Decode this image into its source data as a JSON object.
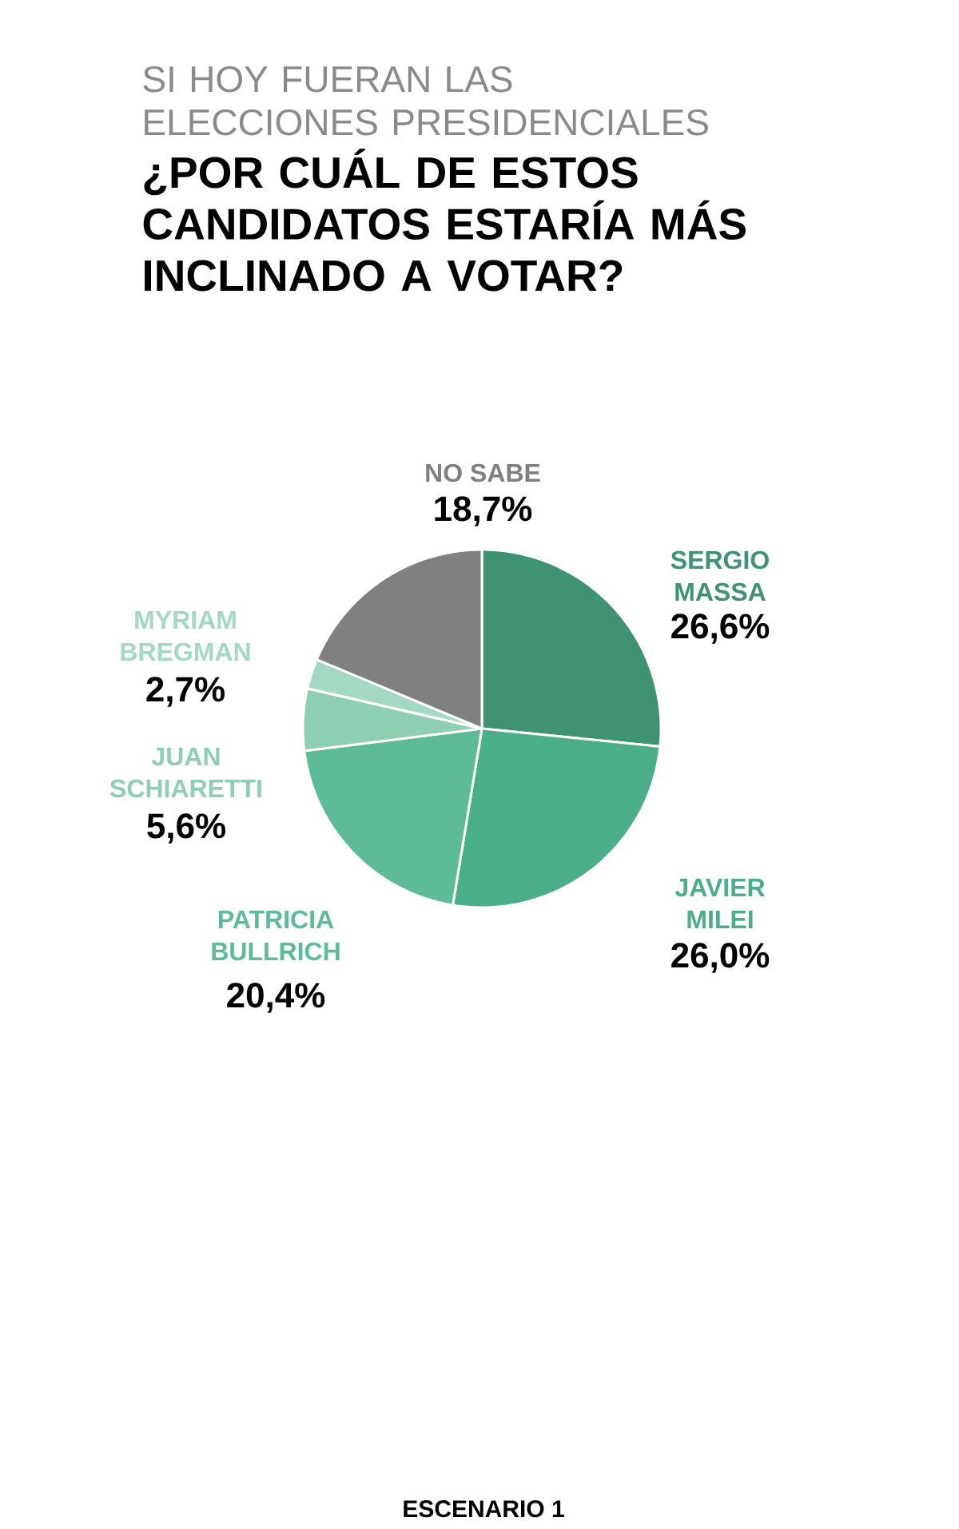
{
  "chart_data": {
    "type": "pie",
    "subtitle": "SI HOY FUERAN LAS ELECCIONES PRESIDENCIALES",
    "title": "¿POR CUÁL DE ESTOS CANDIDATOS ESTARÍA MÁS INCLINADO A VOTAR?",
    "categories": [
      "SERGIO MASSA",
      "JAVIER MILEI",
      "PATRICIA BULLRICH",
      "JUAN SCHIARETTI",
      "MYRIAM BREGMAN",
      "NO SABE"
    ],
    "values": [
      26.6,
      26.0,
      20.4,
      5.6,
      2.7,
      18.7
    ],
    "value_labels": [
      "26,6%",
      "26,0%",
      "20,4%",
      "5,6%",
      "2,7%",
      "18,7%"
    ],
    "colors": [
      "#3f9272",
      "#4aae89",
      "#5dbb97",
      "#8ecfb3",
      "#a3d9c2",
      "#808080"
    ],
    "annotations": [
      "ESCENARIO 1"
    ]
  }
}
